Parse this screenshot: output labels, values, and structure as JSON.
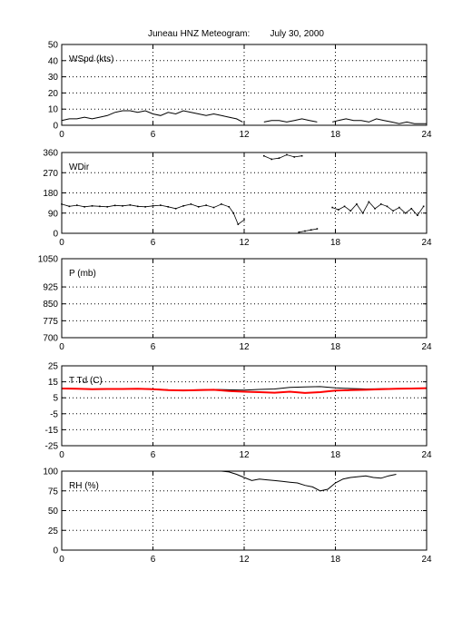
{
  "title": "Juneau HNZ Meteogram:        July 30, 2000",
  "chart_data": [
    {
      "type": "line",
      "label": "WSpd (kts)",
      "xlim": [
        0,
        24
      ],
      "ylim": [
        0,
        50
      ],
      "xticks": [
        0,
        6,
        12,
        18,
        24
      ],
      "yticks": [
        0,
        10,
        20,
        30,
        40,
        50
      ],
      "grid": true,
      "series": [
        {
          "color": "#000000",
          "x": [
            0,
            0.5,
            1,
            1.5,
            2,
            2.5,
            3,
            3.5,
            4,
            4.5,
            5,
            5.5,
            6,
            6.5,
            7,
            7.5,
            8,
            8.5,
            9,
            9.5,
            10,
            10.5,
            11,
            11.5,
            11.9,
            null,
            13.3,
            13.8,
            14.3,
            14.8,
            15.3,
            15.8,
            16.3,
            16.8,
            null,
            17.8,
            18.2,
            18.7,
            19.2,
            19.7,
            20.2,
            20.7,
            21.2,
            21.7,
            22.2,
            22.7,
            23.2,
            23.7,
            24
          ],
          "y": [
            3,
            4,
            4,
            5,
            4,
            5,
            6,
            8,
            9,
            9,
            8,
            9,
            7,
            6,
            8,
            7,
            9,
            8,
            7,
            6,
            7,
            6,
            5,
            4,
            2,
            null,
            2,
            3,
            3,
            2,
            3,
            4,
            3,
            2,
            null,
            2,
            3,
            4,
            3,
            3,
            2,
            4,
            3,
            2,
            1,
            2,
            1,
            1,
            1
          ]
        }
      ]
    },
    {
      "type": "scatter",
      "label": "WDir",
      "xlim": [
        0,
        24
      ],
      "ylim": [
        0,
        360
      ],
      "xticks": [
        0,
        6,
        12,
        18,
        24
      ],
      "yticks": [
        0,
        90,
        180,
        270,
        360
      ],
      "grid": true,
      "series": [
        {
          "color": "#000000",
          "x": [
            0,
            0.5,
            1,
            1.5,
            2,
            2.5,
            3,
            3.5,
            4,
            4.5,
            5,
            5.5,
            6,
            6.5,
            7,
            7.5,
            8,
            8.5,
            9,
            9.5,
            10,
            10.5,
            11,
            11.3,
            11.6,
            12,
            null,
            13.3,
            13.8,
            14.3,
            14.8,
            15.3,
            15.8,
            null,
            15.6,
            16,
            16.4,
            16.8,
            null,
            17.8,
            18.2,
            18.6,
            19,
            19.4,
            19.8,
            20.2,
            20.6,
            21,
            21.4,
            21.8,
            22.2,
            22.6,
            23,
            23.4,
            23.8
          ],
          "y": [
            130,
            120,
            125,
            118,
            122,
            120,
            118,
            124,
            122,
            126,
            120,
            118,
            122,
            125,
            118,
            110,
            122,
            130,
            118,
            125,
            115,
            130,
            118,
            90,
            40,
            60,
            null,
            345,
            330,
            335,
            350,
            340,
            345,
            null,
            5,
            10,
            15,
            20,
            null,
            115,
            105,
            120,
            100,
            130,
            90,
            140,
            110,
            130,
            120,
            100,
            115,
            90,
            110,
            80,
            120
          ]
        }
      ]
    },
    {
      "type": "line",
      "label": "P (mb)",
      "xlim": [
        0,
        24
      ],
      "ylim": [
        700,
        1050
      ],
      "xticks": [
        0,
        6,
        12,
        18,
        24
      ],
      "yticks": [
        700,
        775,
        850,
        925,
        1050
      ],
      "grid": true,
      "series": []
    },
    {
      "type": "line",
      "label": "T Td (C)",
      "xlim": [
        0,
        24
      ],
      "ylim": [
        -25,
        25
      ],
      "xticks": [
        0,
        6,
        12,
        18,
        24
      ],
      "yticks": [
        -25,
        -15,
        -5,
        5,
        15,
        25
      ],
      "grid": true,
      "series": [
        {
          "color": "#000000",
          "x": [
            0,
            1,
            2,
            3,
            4,
            5,
            6,
            7,
            8,
            9,
            10,
            11,
            12,
            13,
            14,
            15,
            16,
            17,
            18,
            19,
            20,
            21,
            22,
            23,
            24
          ],
          "y": [
            11,
            10.8,
            10.5,
            10.6,
            10.8,
            10.8,
            10.5,
            10,
            9.8,
            10,
            10.2,
            10,
            9.8,
            10.2,
            10.5,
            11.5,
            11.8,
            12,
            11.2,
            10.8,
            10.5,
            10.6,
            10.8,
            10.9,
            11
          ]
        },
        {
          "color": "#ff0000",
          "x": [
            0,
            1,
            2,
            3,
            4,
            5,
            6,
            7,
            8,
            9,
            10,
            11,
            12,
            13,
            14,
            15,
            16,
            17,
            18,
            19,
            20,
            21,
            22,
            23,
            24
          ],
          "y": [
            10.8,
            10.6,
            10.4,
            10.5,
            10.5,
            10.6,
            10.4,
            9.8,
            9.6,
            9.8,
            10,
            9.2,
            8.8,
            8.5,
            8.2,
            8.8,
            8,
            8.5,
            9.5,
            9.8,
            10,
            10.4,
            10.6,
            10.8,
            11
          ]
        }
      ]
    },
    {
      "type": "line",
      "label": "RH (%)",
      "xlim": [
        0,
        24
      ],
      "ylim": [
        0,
        100
      ],
      "xticks": [
        0,
        6,
        12,
        18,
        24
      ],
      "yticks": [
        0,
        25,
        50,
        75,
        100
      ],
      "grid": true,
      "series": [
        {
          "color": "#000000",
          "x": [
            0,
            0.5,
            1,
            1.5,
            2,
            2.5,
            3,
            3.5,
            4,
            4.5,
            5,
            5.5,
            6,
            6.5,
            7,
            7.5,
            8,
            8.5,
            9,
            9.5,
            10,
            10.5,
            11,
            11.5,
            12,
            12.5,
            13,
            13.5,
            14,
            14.5,
            15,
            15.5,
            16,
            16.5,
            17,
            17.5,
            18,
            18.5,
            19,
            19.5,
            20,
            20.5,
            21,
            21.5,
            22,
            null,
            23,
            23.5,
            24
          ],
          "y": [
            100,
            100,
            100,
            100,
            100,
            100,
            100,
            100,
            100,
            100,
            100,
            100,
            100,
            100,
            100,
            100,
            100,
            100,
            100,
            100,
            100,
            100,
            99,
            96,
            92,
            88,
            90,
            89,
            88,
            87,
            86,
            85,
            82,
            80,
            75,
            77,
            85,
            90,
            92,
            93,
            94,
            92,
            91,
            94,
            96,
            null,
            100,
            100,
            100
          ]
        }
      ]
    }
  ]
}
